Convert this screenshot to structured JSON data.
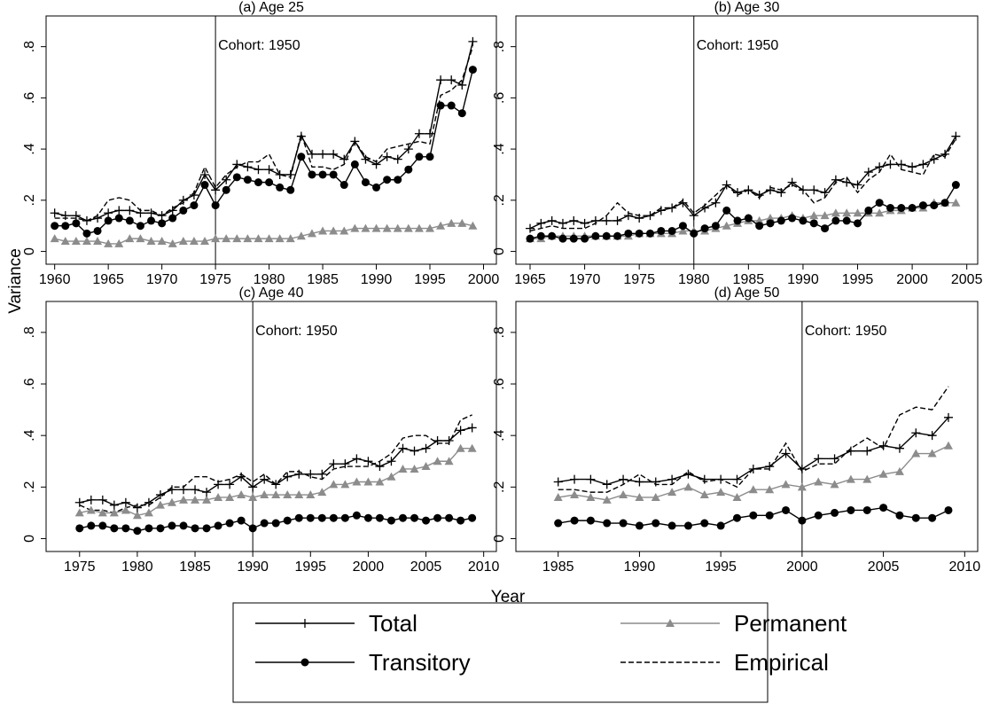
{
  "axis_labels": {
    "y": "Variance",
    "x": "Year"
  },
  "chart_data": [
    {
      "type": "line",
      "title": "(a) Age 25",
      "x": [
        1960,
        1961,
        1962,
        1963,
        1964,
        1965,
        1966,
        1967,
        1968,
        1969,
        1970,
        1971,
        1972,
        1973,
        1974,
        1975,
        1976,
        1977,
        1978,
        1979,
        1980,
        1981,
        1982,
        1983,
        1984,
        1985,
        1986,
        1987,
        1988,
        1989,
        1990,
        1991,
        1992,
        1993,
        1994,
        1995,
        1996,
        1997,
        1998,
        1999
      ],
      "xlim": [
        1959.2,
        2001.2
      ],
      "xticks": [
        1960,
        1965,
        1970,
        1975,
        1980,
        1985,
        1990,
        1995,
        2000
      ],
      "ylim": [
        -0.05,
        0.92
      ],
      "yticks": [
        0,
        {
          "value": 0.2,
          "label": ".2"
        },
        {
          "value": 0.4,
          "label": ".4"
        },
        {
          "value": 0.6,
          "label": ".6"
        },
        {
          "value": 0.8,
          "label": ".8"
        }
      ],
      "annotation": {
        "x": 1975,
        "text": "Cohort: 1950"
      },
      "series": [
        {
          "name": "Total",
          "color": "#000000",
          "marker": "plus",
          "dash": false,
          "values": [
            0.15,
            0.14,
            0.14,
            0.12,
            0.13,
            0.15,
            0.16,
            0.16,
            0.15,
            0.15,
            0.14,
            0.16,
            0.2,
            0.22,
            0.3,
            0.24,
            0.28,
            0.34,
            0.33,
            0.32,
            0.32,
            0.3,
            0.3,
            0.45,
            0.38,
            0.38,
            0.38,
            0.36,
            0.43,
            0.36,
            0.34,
            0.37,
            0.36,
            0.4,
            0.46,
            0.46,
            0.67,
            0.67,
            0.65,
            0.82
          ]
        },
        {
          "name": "Transitory",
          "color": "#000000",
          "marker": "circle",
          "dash": false,
          "values": [
            0.1,
            0.1,
            0.11,
            0.07,
            0.08,
            0.12,
            0.13,
            0.12,
            0.1,
            0.12,
            0.11,
            0.13,
            0.16,
            0.18,
            0.26,
            0.18,
            0.24,
            0.29,
            0.28,
            0.27,
            0.27,
            0.25,
            0.24,
            0.37,
            0.3,
            0.3,
            0.3,
            0.26,
            0.34,
            0.27,
            0.25,
            0.28,
            0.28,
            0.32,
            0.37,
            0.37,
            0.57,
            0.57,
            0.54,
            0.71
          ]
        },
        {
          "name": "Permanent",
          "color": "#8c8c8c",
          "marker": "triangle",
          "dash": false,
          "values": [
            0.05,
            0.04,
            0.04,
            0.04,
            0.04,
            0.03,
            0.03,
            0.05,
            0.05,
            0.04,
            0.04,
            0.03,
            0.04,
            0.04,
            0.04,
            0.05,
            0.05,
            0.05,
            0.05,
            0.05,
            0.05,
            0.05,
            0.05,
            0.06,
            0.07,
            0.08,
            0.08,
            0.08,
            0.09,
            0.09,
            0.09,
            0.09,
            0.09,
            0.09,
            0.09,
            0.09,
            0.1,
            0.11,
            0.11,
            0.1
          ]
        },
        {
          "name": "Empirical",
          "color": "#000000",
          "marker": "none",
          "dash": true,
          "values": [
            0.13,
            0.13,
            0.13,
            0.12,
            0.14,
            0.2,
            0.21,
            0.2,
            0.16,
            0.16,
            0.14,
            0.17,
            0.19,
            0.23,
            0.33,
            0.25,
            0.3,
            0.33,
            0.35,
            0.35,
            0.38,
            0.3,
            0.29,
            0.46,
            0.33,
            0.33,
            0.32,
            0.34,
            0.43,
            0.37,
            0.35,
            0.4,
            0.41,
            0.42,
            0.43,
            0.42,
            0.61,
            0.63,
            0.67,
            0.8
          ]
        }
      ]
    },
    {
      "type": "line",
      "title": "(b) Age 30",
      "x": [
        1965,
        1966,
        1967,
        1968,
        1969,
        1970,
        1971,
        1972,
        1973,
        1974,
        1975,
        1976,
        1977,
        1978,
        1979,
        1980,
        1981,
        1982,
        1983,
        1984,
        1985,
        1986,
        1987,
        1988,
        1989,
        1990,
        1991,
        1992,
        1993,
        1994,
        1995,
        1996,
        1997,
        1998,
        1999,
        2000,
        2001,
        2002,
        2003,
        2004
      ],
      "xlim": [
        1963.7,
        2006
      ],
      "xticks": [
        1965,
        1970,
        1975,
        1980,
        1985,
        1990,
        1995,
        2000,
        2005
      ],
      "ylim": [
        -0.05,
        0.92
      ],
      "yticks": [
        0,
        {
          "value": 0.2,
          "label": ".2"
        },
        {
          "value": 0.4,
          "label": ".4"
        },
        {
          "value": 0.6,
          "label": ".6"
        },
        {
          "value": 0.8,
          "label": ".8"
        }
      ],
      "annotation": {
        "x": 1980,
        "text": "Cohort: 1950"
      },
      "series": [
        {
          "name": "Total",
          "color": "#000000",
          "marker": "plus",
          "dash": false,
          "values": [
            0.09,
            0.11,
            0.12,
            0.11,
            0.12,
            0.11,
            0.12,
            0.12,
            0.12,
            0.14,
            0.13,
            0.14,
            0.16,
            0.17,
            0.19,
            0.14,
            0.17,
            0.19,
            0.26,
            0.23,
            0.24,
            0.22,
            0.24,
            0.23,
            0.27,
            0.24,
            0.24,
            0.23,
            0.28,
            0.27,
            0.26,
            0.31,
            0.33,
            0.34,
            0.34,
            0.33,
            0.34,
            0.36,
            0.38,
            0.45
          ]
        },
        {
          "name": "Transitory",
          "color": "#000000",
          "marker": "circle",
          "dash": false,
          "values": [
            0.05,
            0.06,
            0.06,
            0.05,
            0.05,
            0.05,
            0.06,
            0.06,
            0.06,
            0.07,
            0.07,
            0.07,
            0.08,
            0.08,
            0.1,
            0.07,
            0.09,
            0.1,
            0.16,
            0.12,
            0.13,
            0.1,
            0.11,
            0.12,
            0.13,
            0.12,
            0.11,
            0.09,
            0.12,
            0.12,
            0.11,
            0.16,
            0.19,
            0.17,
            0.17,
            0.17,
            0.18,
            0.18,
            0.19,
            0.26
          ]
        },
        {
          "name": "Permanent",
          "color": "#8c8c8c",
          "marker": "triangle",
          "dash": false,
          "values": [
            0.05,
            0.05,
            0.06,
            0.06,
            0.06,
            0.06,
            0.06,
            0.06,
            0.06,
            0.06,
            0.07,
            0.07,
            0.07,
            0.07,
            0.08,
            0.08,
            0.08,
            0.09,
            0.1,
            0.11,
            0.12,
            0.12,
            0.13,
            0.13,
            0.14,
            0.13,
            0.14,
            0.14,
            0.15,
            0.15,
            0.15,
            0.15,
            0.15,
            0.16,
            0.16,
            0.17,
            0.17,
            0.19,
            0.19,
            0.19
          ]
        },
        {
          "name": "Empirical",
          "color": "#000000",
          "marker": "none",
          "dash": true,
          "values": [
            0.08,
            0.09,
            0.1,
            0.09,
            0.09,
            0.09,
            0.11,
            0.14,
            0.19,
            0.15,
            0.14,
            0.14,
            0.17,
            0.17,
            0.2,
            0.15,
            0.18,
            0.22,
            0.26,
            0.22,
            0.24,
            0.21,
            0.25,
            0.24,
            0.26,
            0.24,
            0.19,
            0.21,
            0.27,
            0.29,
            0.23,
            0.28,
            0.31,
            0.38,
            0.32,
            0.31,
            0.3,
            0.38,
            0.37,
            0.44
          ]
        }
      ]
    },
    {
      "type": "line",
      "title": "(c) Age 40",
      "x": [
        1975,
        1976,
        1977,
        1978,
        1979,
        1980,
        1981,
        1982,
        1983,
        1984,
        1985,
        1986,
        1987,
        1988,
        1989,
        1990,
        1991,
        1992,
        1993,
        1994,
        1995,
        1996,
        1997,
        1998,
        1999,
        2000,
        2001,
        2002,
        2003,
        2004,
        2005,
        2006,
        2007,
        2008,
        2009
      ],
      "xlim": [
        1972.1,
        2011.1
      ],
      "xticks": [
        1975,
        1980,
        1985,
        1990,
        1995,
        2000,
        2005,
        2010
      ],
      "ylim": [
        -0.05,
        0.92
      ],
      "yticks": [
        0,
        {
          "value": 0.2,
          "label": ".2"
        },
        {
          "value": 0.4,
          "label": ".4"
        },
        {
          "value": 0.6,
          "label": ".6"
        },
        {
          "value": 0.8,
          "label": ".8"
        }
      ],
      "annotation": {
        "x": 1990,
        "text": "Cohort: 1950"
      },
      "series": [
        {
          "name": "Total",
          "color": "#000000",
          "marker": "plus",
          "dash": false,
          "values": [
            0.14,
            0.15,
            0.15,
            0.13,
            0.14,
            0.12,
            0.14,
            0.17,
            0.19,
            0.19,
            0.19,
            0.18,
            0.21,
            0.21,
            0.24,
            0.2,
            0.23,
            0.21,
            0.24,
            0.25,
            0.25,
            0.25,
            0.29,
            0.29,
            0.31,
            0.3,
            0.28,
            0.3,
            0.35,
            0.34,
            0.35,
            0.38,
            0.38,
            0.42,
            0.43
          ]
        },
        {
          "name": "Transitory",
          "color": "#000000",
          "marker": "circle",
          "dash": false,
          "values": [
            0.04,
            0.05,
            0.05,
            0.04,
            0.04,
            0.03,
            0.04,
            0.04,
            0.05,
            0.05,
            0.04,
            0.04,
            0.05,
            0.06,
            0.07,
            0.04,
            0.06,
            0.06,
            0.07,
            0.08,
            0.08,
            0.08,
            0.08,
            0.08,
            0.09,
            0.08,
            0.08,
            0.07,
            0.08,
            0.08,
            0.07,
            0.08,
            0.08,
            0.07,
            0.08
          ]
        },
        {
          "name": "Permanent",
          "color": "#8c8c8c",
          "marker": "triangle",
          "dash": false,
          "values": [
            0.1,
            0.11,
            0.1,
            0.1,
            0.11,
            0.09,
            0.1,
            0.13,
            0.14,
            0.15,
            0.15,
            0.15,
            0.16,
            0.16,
            0.17,
            0.16,
            0.17,
            0.17,
            0.17,
            0.17,
            0.17,
            0.18,
            0.21,
            0.21,
            0.22,
            0.22,
            0.22,
            0.24,
            0.27,
            0.27,
            0.28,
            0.3,
            0.3,
            0.35,
            0.35
          ]
        },
        {
          "name": "Empirical",
          "color": "#000000",
          "marker": "none",
          "dash": true,
          "values": [
            0.13,
            0.11,
            0.11,
            0.1,
            0.12,
            0.13,
            0.13,
            0.16,
            0.2,
            0.2,
            0.24,
            0.24,
            0.22,
            0.23,
            0.25,
            0.22,
            0.25,
            0.21,
            0.26,
            0.26,
            0.24,
            0.23,
            0.27,
            0.28,
            0.28,
            0.28,
            0.3,
            0.33,
            0.39,
            0.4,
            0.4,
            0.37,
            0.37,
            0.46,
            0.48
          ]
        }
      ]
    },
    {
      "type": "line",
      "title": "(d) Age 50",
      "x": [
        1985,
        1986,
        1987,
        1988,
        1989,
        1990,
        1991,
        1992,
        1993,
        1994,
        1995,
        1996,
        1997,
        1998,
        1999,
        2000,
        2001,
        2002,
        2003,
        2004,
        2005,
        2006,
        2007,
        2008,
        2009
      ],
      "xlim": [
        1982.4,
        2010.8
      ],
      "xticks": [
        1985,
        1990,
        1995,
        2000,
        2005,
        2010
      ],
      "ylim": [
        -0.05,
        0.92
      ],
      "yticks": [
        0,
        {
          "value": 0.2,
          "label": ".2"
        },
        {
          "value": 0.4,
          "label": ".4"
        },
        {
          "value": 0.6,
          "label": ".6"
        },
        {
          "value": 0.8,
          "label": ".8"
        }
      ],
      "annotation": {
        "x": 2000,
        "text": "Cohort: 1950"
      },
      "series": [
        {
          "name": "Total",
          "color": "#000000",
          "marker": "plus",
          "dash": false,
          "values": [
            0.22,
            0.23,
            0.23,
            0.21,
            0.23,
            0.22,
            0.22,
            0.23,
            0.25,
            0.23,
            0.23,
            0.23,
            0.27,
            0.28,
            0.33,
            0.27,
            0.31,
            0.31,
            0.34,
            0.34,
            0.36,
            0.35,
            0.41,
            0.4,
            0.47
          ]
        },
        {
          "name": "Transitory",
          "color": "#000000",
          "marker": "circle",
          "dash": false,
          "values": [
            0.06,
            0.07,
            0.07,
            0.06,
            0.06,
            0.05,
            0.06,
            0.05,
            0.05,
            0.06,
            0.05,
            0.08,
            0.09,
            0.09,
            0.11,
            0.07,
            0.09,
            0.1,
            0.11,
            0.11,
            0.12,
            0.09,
            0.08,
            0.08,
            0.11
          ]
        },
        {
          "name": "Permanent",
          "color": "#8c8c8c",
          "marker": "triangle",
          "dash": false,
          "values": [
            0.16,
            0.17,
            0.16,
            0.15,
            0.17,
            0.16,
            0.16,
            0.18,
            0.2,
            0.17,
            0.18,
            0.16,
            0.19,
            0.19,
            0.21,
            0.2,
            0.22,
            0.21,
            0.23,
            0.23,
            0.25,
            0.26,
            0.33,
            0.33,
            0.36
          ]
        },
        {
          "name": "Empirical",
          "color": "#000000",
          "marker": "none",
          "dash": true,
          "values": [
            0.19,
            0.19,
            0.18,
            0.18,
            0.21,
            0.25,
            0.21,
            0.21,
            0.26,
            0.22,
            0.23,
            0.2,
            0.27,
            0.27,
            0.37,
            0.26,
            0.29,
            0.29,
            0.35,
            0.39,
            0.35,
            0.48,
            0.51,
            0.5,
            0.59
          ]
        }
      ]
    }
  ]
}
